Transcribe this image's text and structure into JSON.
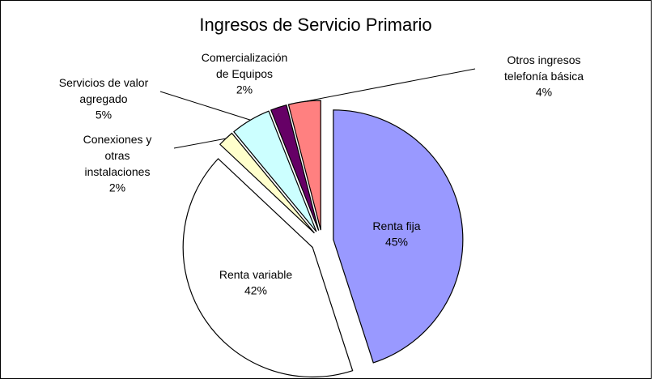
{
  "chart_data": {
    "type": "pie",
    "title": "Ingresos de Servicio Primario",
    "categories": [
      "Renta fija",
      "Renta variable",
      "Conexiones y otras instalaciones",
      "Servicios de valor agregado",
      "Comercialización de Equipos",
      "Otros ingresos telefonía básica"
    ],
    "values": [
      45,
      42,
      2,
      5,
      2,
      4
    ],
    "value_labels": [
      "45%",
      "42%",
      "2%",
      "5%",
      "2%",
      "4%"
    ],
    "colors": [
      "#9999ff",
      "#ffffff",
      "#ffffcc",
      "#ccffff",
      "#660066",
      "#ff8080"
    ]
  }
}
